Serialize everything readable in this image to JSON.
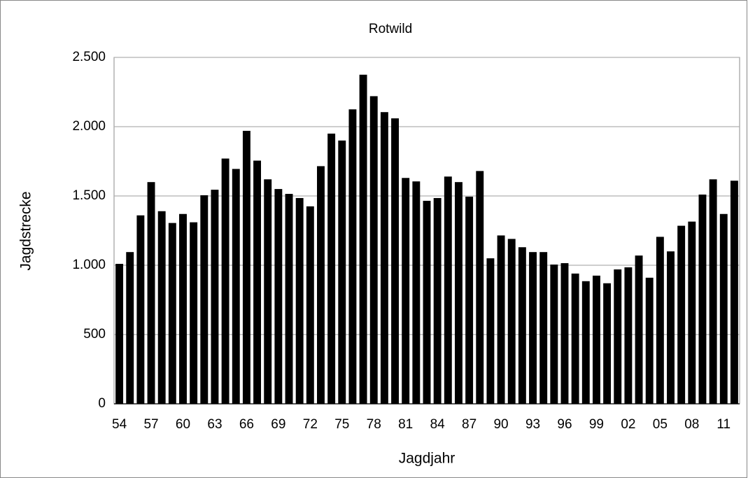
{
  "chart_data": {
    "type": "bar",
    "title": "Rotwild",
    "x_label": "Jagdjahr",
    "y_label": "Jagdstrecke",
    "categories": [
      "54",
      null,
      null,
      "57",
      null,
      null,
      "60",
      null,
      null,
      "63",
      null,
      null,
      "66",
      null,
      null,
      "69",
      null,
      null,
      "72",
      null,
      null,
      "75",
      null,
      null,
      "78",
      null,
      null,
      "81",
      null,
      null,
      "84",
      null,
      null,
      "87",
      null,
      null,
      "90",
      null,
      null,
      "93",
      null,
      null,
      "96",
      null,
      null,
      "99",
      null,
      null,
      "02",
      null,
      null,
      "05",
      null,
      null,
      "08",
      null,
      null,
      "11",
      null
    ],
    "values": [
      1010,
      1095,
      1360,
      1600,
      1390,
      1305,
      1370,
      1310,
      1505,
      1545,
      1770,
      1695,
      1970,
      1755,
      1620,
      1550,
      1515,
      1485,
      1425,
      1715,
      1950,
      1900,
      2125,
      2375,
      2220,
      2105,
      2060,
      1630,
      1605,
      1465,
      1485,
      1640,
      1600,
      1495,
      1680,
      1050,
      1215,
      1190,
      1130,
      1095,
      1095,
      1005,
      1015,
      940,
      885,
      925,
      870,
      970,
      985,
      1070,
      910,
      1205,
      1100,
      1285,
      1315,
      1510,
      1620,
      1370,
      1610
    ],
    "color": "#000000",
    "ylim": [
      0,
      2500
    ],
    "yticks": [
      0,
      500,
      {
        "value": 1000,
        "label": "1.000"
      },
      {
        "value": 1500,
        "label": "1.500"
      },
      {
        "value": 2000,
        "label": "2.000"
      },
      {
        "value": 2500,
        "label": "2.500"
      }
    ],
    "grid": true
  }
}
